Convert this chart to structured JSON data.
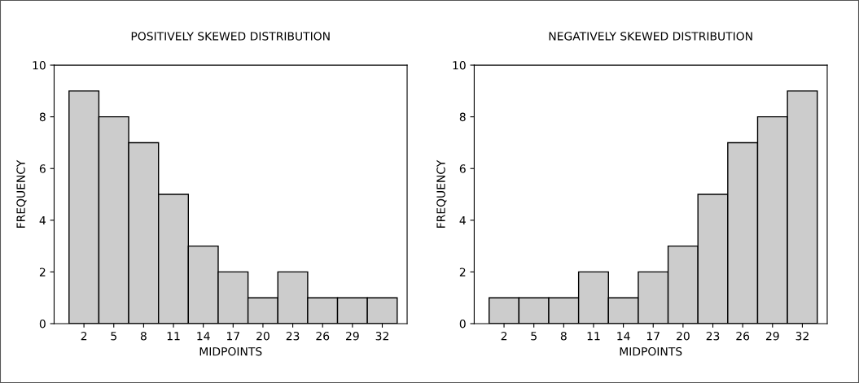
{
  "chart_data": [
    {
      "type": "histogram",
      "title": "POSITIVELY SKEWED DISTRIBUTION",
      "xlabel": "MIDPOINTS",
      "ylabel": "FREQUENCY",
      "color": "#cccccc",
      "bins": [
        0.5,
        3.5,
        6.5,
        9.5,
        12.5,
        15.5,
        18.5,
        21.5,
        24.5,
        27.5,
        30.5,
        33.5
      ],
      "values": [
        9,
        8,
        7,
        5,
        3,
        2,
        1,
        2,
        1,
        1,
        1
      ],
      "xlim": [
        -1,
        34.5
      ],
      "xticks": [
        2,
        5,
        8,
        11,
        14,
        17,
        20,
        23,
        26,
        29,
        32
      ],
      "ylim": [
        0,
        10
      ],
      "yticks": [
        0,
        2,
        4,
        6,
        8,
        10
      ],
      "grid": false,
      "legend": false
    },
    {
      "type": "histogram",
      "title": "NEGATIVELY SKEWED DISTRIBUTION",
      "xlabel": "MIDPOINTS",
      "ylabel": "FREQUENCY",
      "color": "#cccccc",
      "bins": [
        0.5,
        3.5,
        6.5,
        9.5,
        12.5,
        15.5,
        18.5,
        21.5,
        24.5,
        27.5,
        30.5,
        33.5
      ],
      "values": [
        1,
        1,
        1,
        2,
        1,
        2,
        3,
        5,
        7,
        8,
        9
      ],
      "xlim": [
        -1,
        34.5
      ],
      "xticks": [
        2,
        5,
        8,
        11,
        14,
        17,
        20,
        23,
        26,
        29,
        32
      ],
      "ylim": [
        0,
        10
      ],
      "yticks": [
        0,
        2,
        4,
        6,
        8,
        10
      ],
      "grid": false,
      "legend": false
    }
  ]
}
